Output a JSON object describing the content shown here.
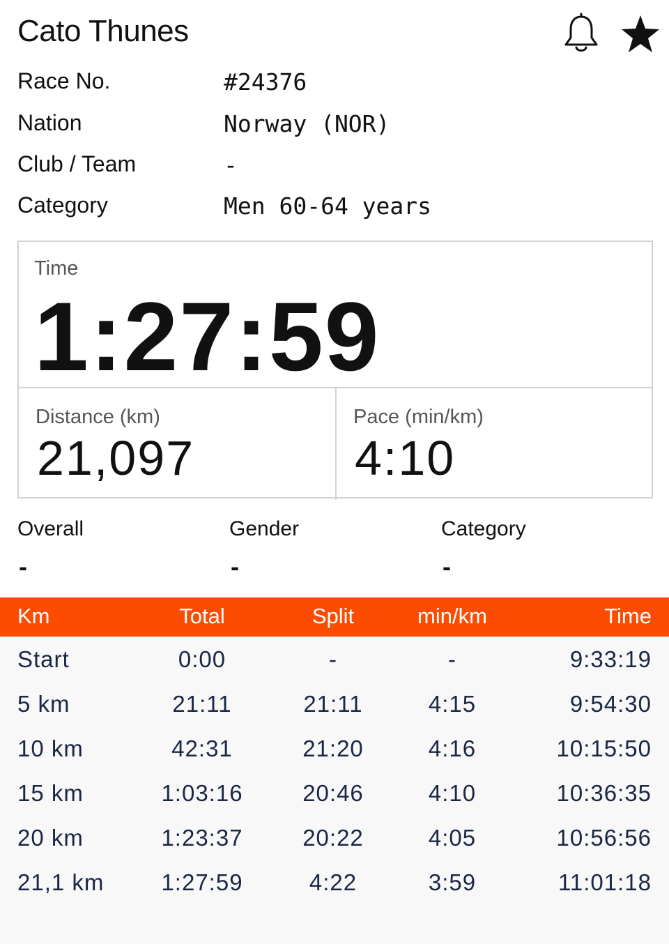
{
  "athlete": {
    "name": "Cato Thunes"
  },
  "icons": {
    "bell": "bell-icon",
    "star": "star-icon"
  },
  "info": [
    {
      "label": "Race No.",
      "value": "#24376"
    },
    {
      "label": "Nation",
      "value": "Norway (NOR)"
    },
    {
      "label": "Club / Team",
      "value": "-"
    },
    {
      "label": "Category",
      "value": "Men 60-64 years"
    }
  ],
  "stats": {
    "time_label": "Time",
    "time_value": "1:27:59",
    "distance_label": "Distance (km)",
    "distance_value": "21,097",
    "pace_label": "Pace (min/km)",
    "pace_value": "4:10"
  },
  "ranks": [
    {
      "label": "Overall",
      "value": "-"
    },
    {
      "label": "Gender",
      "value": "-"
    },
    {
      "label": "Category",
      "value": "-"
    }
  ],
  "table": {
    "headers": {
      "km": "Km",
      "total": "Total",
      "split": "Split",
      "pace": "min/km",
      "time": "Time"
    },
    "rows": [
      {
        "km": "Start",
        "total": "0:00",
        "split": "-",
        "pace": "-",
        "time": "9:33:19"
      },
      {
        "km": "5 km",
        "total": "21:11",
        "split": "21:11",
        "pace": "4:15",
        "time": "9:54:30"
      },
      {
        "km": "10 km",
        "total": "42:31",
        "split": "21:20",
        "pace": "4:16",
        "time": "10:15:50"
      },
      {
        "km": "15 km",
        "total": "1:03:16",
        "split": "20:46",
        "pace": "4:10",
        "time": "10:36:35"
      },
      {
        "km": "20 km",
        "total": "1:23:37",
        "split": "20:22",
        "pace": "4:05",
        "time": "10:56:56"
      },
      {
        "km": "21,1 km",
        "total": "1:27:59",
        "split": "4:22",
        "pace": "3:59",
        "time": "11:01:18"
      }
    ]
  },
  "colors": {
    "accent": "#fc4c02",
    "table_text": "#1a2744",
    "border": "#d2d2d2",
    "table_bg": "#f8f8f8"
  }
}
